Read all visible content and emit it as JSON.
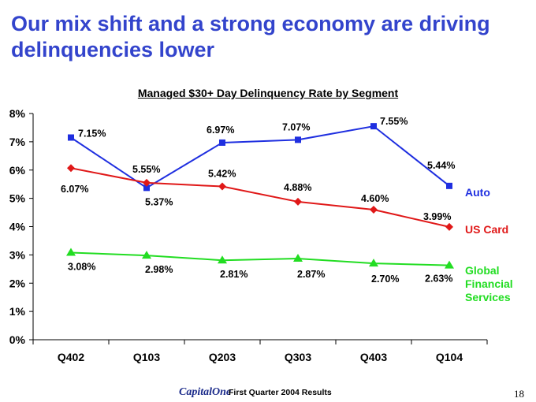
{
  "title": "Our mix shift and a strong economy are driving delinquencies lower",
  "chart_data": {
    "type": "line",
    "title": "Managed $30+ Day Delinquency Rate by Segment",
    "xlabel": "",
    "ylabel": "",
    "categories": [
      "Q402",
      "Q103",
      "Q203",
      "Q303",
      "Q403",
      "Q104"
    ],
    "ylim": [
      0,
      8
    ],
    "yticks": [
      "0%",
      "1%",
      "2%",
      "3%",
      "4%",
      "5%",
      "6%",
      "7%",
      "8%"
    ],
    "grid": false,
    "series": [
      {
        "name": "Auto",
        "color": "#1f2fe0",
        "marker": "square",
        "values": [
          7.15,
          5.37,
          6.97,
          7.07,
          7.55,
          5.44
        ],
        "labels": [
          "7.15%",
          "5.37%",
          "6.97%",
          "7.07%",
          "7.55%",
          "5.44%"
        ]
      },
      {
        "name": "US Card",
        "color": "#e01818",
        "marker": "diamond",
        "values": [
          6.07,
          5.55,
          5.42,
          4.88,
          4.6,
          3.99
        ],
        "labels": [
          "6.07%",
          "5.55%",
          "5.42%",
          "4.88%",
          "4.60%",
          "3.99%"
        ]
      },
      {
        "name": "Global Financial Services",
        "legend_lines": [
          "Global",
          "Financial",
          "Services"
        ],
        "color": "#22dd22",
        "marker": "triangle",
        "values": [
          3.08,
          2.98,
          2.81,
          2.87,
          2.7,
          2.63
        ],
        "labels": [
          "3.08%",
          "2.98%",
          "2.81%",
          "2.87%",
          "2.70%",
          "2.63%"
        ]
      }
    ]
  },
  "footer": {
    "logo_text": "CapitalOne",
    "text": "First Quarter 2004 Results",
    "page_number": "18"
  }
}
